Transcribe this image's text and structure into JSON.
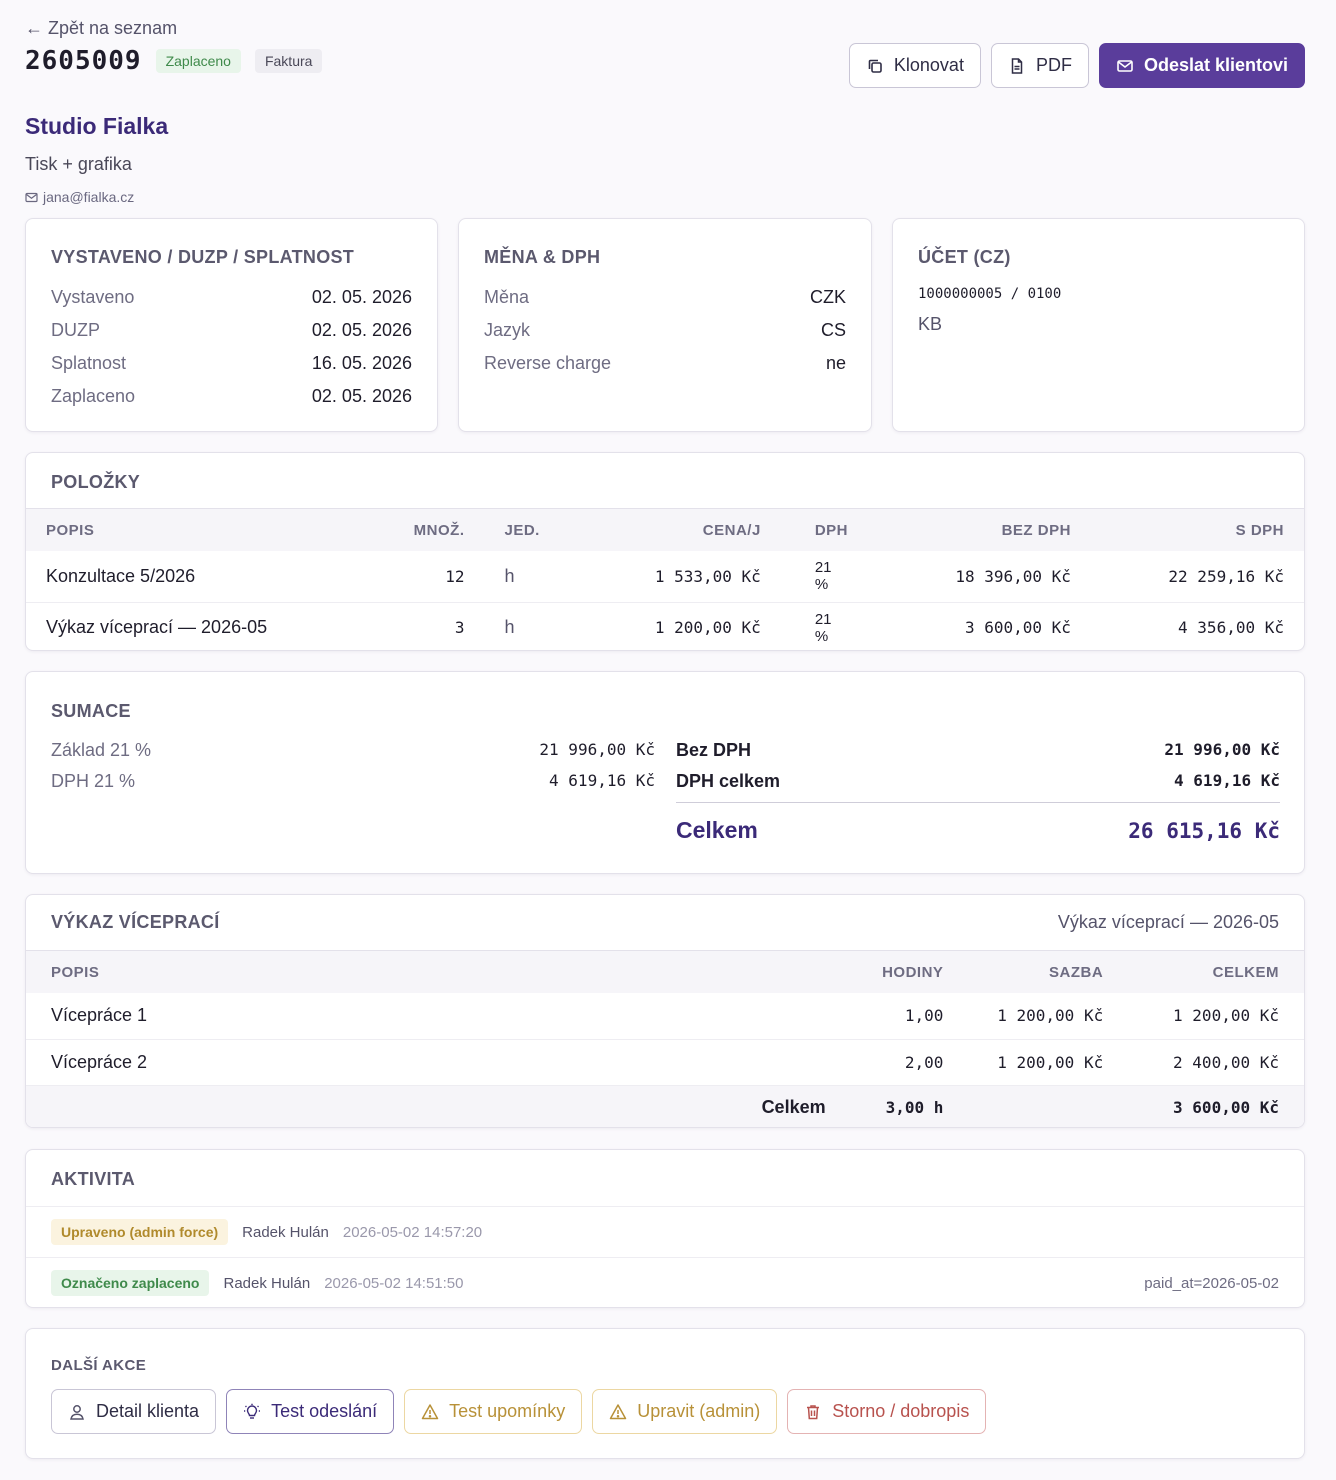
{
  "nav": {
    "back_label": "← Zpět na seznam"
  },
  "invoice": {
    "number": "2605009",
    "status_badge": "Zaplaceno",
    "type_badge": "Faktura"
  },
  "toolbar": {
    "clone_label": "Klonovat",
    "pdf_label": "PDF",
    "send_label": "Odeslat klientovi"
  },
  "client": {
    "name": "Studio Fialka",
    "subtitle": "Tisk + grafika",
    "email": "jana@fialka.cz"
  },
  "dates": {
    "title": "VYSTAVENO / DUZP / SPLATNOST",
    "rows": [
      {
        "label": "Vystaveno",
        "value": "02. 05. 2026"
      },
      {
        "label": "DUZP",
        "value": "02. 05. 2026"
      },
      {
        "label": "Splatnost",
        "value": "16. 05. 2026"
      },
      {
        "label": "Zaplaceno",
        "value": "02. 05. 2026"
      }
    ]
  },
  "currency": {
    "title": "MĚNA & DPH",
    "rows": [
      {
        "label": "Měna",
        "value": "CZK"
      },
      {
        "label": "Jazyk",
        "value": "CS"
      },
      {
        "label": "Reverse charge",
        "value": "ne"
      }
    ]
  },
  "account": {
    "title": "ÚČET (CZ)",
    "number": "1000000005 / 0100",
    "bank": "KB"
  },
  "items": {
    "title": "POLOŽKY",
    "headers": [
      "POPIS",
      "MNOŽ.",
      "JED.",
      "CENA/J",
      "DPH",
      "BEZ DPH",
      "S DPH"
    ],
    "rows": [
      {
        "desc": "Konzultace 5/2026",
        "qty": "12",
        "unit": "h",
        "price": "1 533,00 Kč",
        "vat": "21 %",
        "net": "18 396,00 Kč",
        "gross": "22 259,16 Kč"
      },
      {
        "desc": "Výkaz víceprací — 2026-05",
        "qty": "3",
        "unit": "h",
        "price": "1 200,00 Kč",
        "vat": "21 %",
        "net": "3 600,00 Kč",
        "gross": "4 356,00 Kč"
      }
    ]
  },
  "summary": {
    "title": "SUMACE",
    "base_label": "Základ 21 %",
    "base_value": "21 996,00 Kč",
    "vat_label": "DPH 21 %",
    "vat_value": "4 619,16 Kč",
    "net_total_label": "Bez DPH",
    "net_total_value": "21 996,00 Kč",
    "vat_total_label": "DPH celkem",
    "vat_total_value": "4 619,16 Kč",
    "grand_label": "Celkem",
    "grand_value": "26 615,16 Kč"
  },
  "extra_work": {
    "title": "VÝKAZ VÍCEPRACÍ",
    "subtitle": "Výkaz víceprací — 2026-05",
    "headers": [
      "POPIS",
      "HODINY",
      "SAZBA",
      "CELKEM"
    ],
    "rows": [
      {
        "desc": "Vícepráce 1",
        "hours": "1,00",
        "rate": "1 200,00 Kč",
        "total": "1 200,00 Kč"
      },
      {
        "desc": "Vícepráce 2",
        "hours": "2,00",
        "rate": "1 200,00 Kč",
        "total": "2 400,00 Kč"
      }
    ],
    "footer_label": "Celkem",
    "footer_hours": "3,00 h",
    "footer_total": "3 600,00 Kč"
  },
  "activity": {
    "title": "AKTIVITA",
    "rows": [
      {
        "badge": "Upraveno (admin force)",
        "user": "Radek Hulán",
        "time": "2026-05-02 14:57:20",
        "meta": ""
      },
      {
        "badge": "Označeno zaplaceno",
        "user": "Radek Hulán",
        "time": "2026-05-02 14:51:50",
        "meta": "paid_at=2026-05-02"
      }
    ]
  },
  "more_actions": {
    "title": "DALŠÍ AKCE",
    "client_detail": "Detail klienta",
    "test_send": "Test odeslání",
    "test_reminder": "Test upomínky",
    "edit_admin": "Upravit (admin)",
    "storno": "Storno / dobropis"
  },
  "colors": {
    "accent": "#5a3d9b",
    "client_name": "#3b2a78",
    "paid_badge": "#3f8a4b",
    "warning": "#b89138",
    "danger": "#b8524e"
  }
}
